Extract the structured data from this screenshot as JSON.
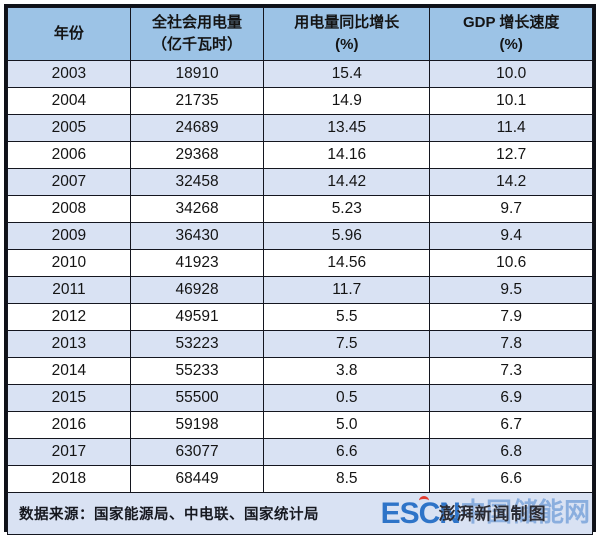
{
  "table": {
    "headers": [
      {
        "line1": "年份",
        "line2": ""
      },
      {
        "line1": "全社会用电量",
        "line2": "（亿千瓦时）"
      },
      {
        "line1": "用电量同比增长",
        "line2": "(%)"
      },
      {
        "line1": "GDP 增长速度",
        "line2": "(%)"
      }
    ]
  },
  "footer": {
    "source_label": "数据来源：国家能源局、中电联、国家统计局",
    "watermark_escn": "ESCN",
    "watermark_escn_suffix": "中国储能网",
    "watermark_credit": "澎湃新闻制图"
  },
  "colors": {
    "header_bg": "#9cc3e6",
    "alt_row_bg": "#d9e2f3",
    "white_row_bg": "#ffffff",
    "border": "#14161f",
    "text": "#141414",
    "watermark_blue": "#2e74c8",
    "watermark_light_blue": "#8aaede",
    "watermark_red_accent": "#e03b2f"
  },
  "chart_data": {
    "type": "table",
    "title": "",
    "columns": [
      "年份",
      "全社会用电量（亿千瓦时）",
      "用电量同比增长(%)",
      "GDP 增长速度(%)"
    ],
    "rows": [
      [
        "2003",
        "18910",
        "15.4",
        "10.0"
      ],
      [
        "2004",
        "21735",
        "14.9",
        "10.1"
      ],
      [
        "2005",
        "24689",
        "13.45",
        "11.4"
      ],
      [
        "2006",
        "29368",
        "14.16",
        "12.7"
      ],
      [
        "2007",
        "32458",
        "14.42",
        "14.2"
      ],
      [
        "2008",
        "34268",
        "5.23",
        "9.7"
      ],
      [
        "2009",
        "36430",
        "5.96",
        "9.4"
      ],
      [
        "2010",
        "41923",
        "14.56",
        "10.6"
      ],
      [
        "2011",
        "46928",
        "11.7",
        "9.5"
      ],
      [
        "2012",
        "49591",
        "5.5",
        "7.9"
      ],
      [
        "2013",
        "53223",
        "7.5",
        "7.8"
      ],
      [
        "2014",
        "55233",
        "3.8",
        "7.3"
      ],
      [
        "2015",
        "55500",
        "0.5",
        "6.9"
      ],
      [
        "2016",
        "59198",
        "5.0",
        "6.7"
      ],
      [
        "2017",
        "63077",
        "6.6",
        "6.8"
      ],
      [
        "2018",
        "68449",
        "8.5",
        "6.6"
      ]
    ],
    "source": "数据来源：国家能源局、中电联、国家统计局",
    "notes": "alternating row shading starts with 2003 shaded light blue; watermark ESCN中国储能网 overlapped by credit 澎湃新闻制图 in footer"
  }
}
